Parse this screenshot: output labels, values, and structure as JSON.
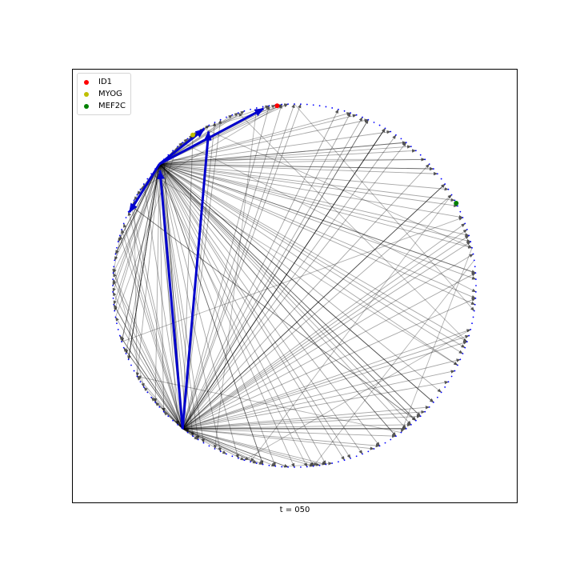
{
  "legend": [
    {
      "label": "ID1",
      "color": "#ff0000"
    },
    {
      "label": "MYOG",
      "color": "#bfbf00"
    },
    {
      "label": "MEF2C",
      "color": "#008000"
    }
  ],
  "xlabel": "t = 050",
  "colors": {
    "node_dot": "#0000ff",
    "edge": "#000000",
    "highlight_edge": "#0000cc"
  },
  "network": {
    "node_count": 180,
    "hubs": [
      {
        "id": 20
      },
      {
        "id": 67
      }
    ],
    "highlight_edges": [
      {
        "from": 20,
        "to": 0
      },
      {
        "from": 20,
        "to": 10
      },
      {
        "from": 20,
        "to": 30
      },
      {
        "from": 67,
        "to": 10
      },
      {
        "from": 67,
        "to": 20
      }
    ]
  }
}
